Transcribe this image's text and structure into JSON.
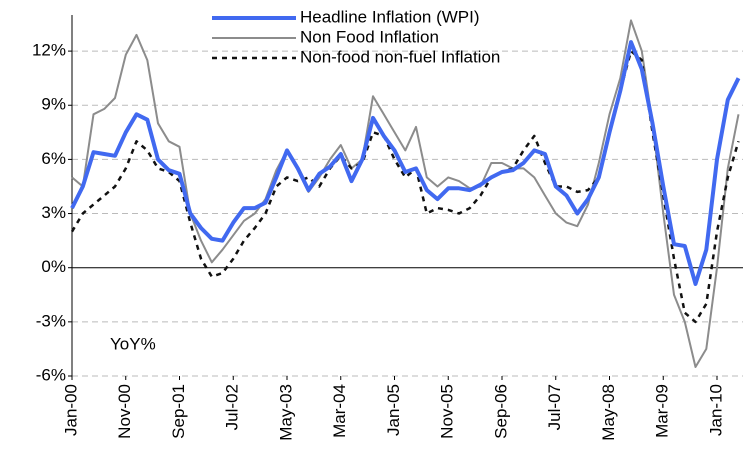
{
  "chart_data": {
    "type": "line",
    "annotation": "YoY%",
    "categories": [
      "Jan-00",
      null,
      null,
      null,
      null,
      "Nov-00",
      null,
      null,
      null,
      null,
      "Sep-01",
      null,
      null,
      null,
      null,
      "Jul-02",
      null,
      null,
      null,
      null,
      "May-03",
      null,
      null,
      null,
      null,
      "Mar-04",
      null,
      null,
      null,
      null,
      "Jan-05",
      null,
      null,
      null,
      null,
      "Nov-05",
      null,
      null,
      null,
      null,
      "Sep-06",
      null,
      null,
      null,
      null,
      "Jul-07",
      null,
      null,
      null,
      null,
      "May-08",
      null,
      null,
      null,
      null,
      "Mar-09",
      null,
      null,
      null,
      null,
      "Jan-10",
      null,
      null
    ],
    "series": [
      {
        "name": "Headline Inflation (WPI)",
        "color": "#4169f0",
        "style": "solid",
        "width": 4,
        "values": [
          3.3,
          4.5,
          6.4,
          6.3,
          6.2,
          7.5,
          8.5,
          8.2,
          6,
          5.4,
          5.2,
          3,
          2.2,
          1.6,
          1.5,
          2.5,
          3.3,
          3.3,
          3.6,
          5,
          6.5,
          5.5,
          4.3,
          5.2,
          5.6,
          6.3,
          4.8,
          6,
          8.3,
          7.3,
          6.5,
          5.3,
          5.5,
          4.3,
          3.8,
          4.4,
          4.4,
          4.3,
          4.6,
          5,
          5.3,
          5.4,
          5.8,
          6.5,
          6.3,
          4.5,
          4,
          3,
          3.8,
          5,
          7.5,
          9.8,
          12.5,
          11,
          8,
          4.5,
          1.3,
          1.2,
          -0.9,
          1,
          6,
          9.3,
          10.5
        ]
      },
      {
        "name": "Non Food Inflation",
        "color": "#8c8c8c",
        "style": "solid",
        "width": 2,
        "values": [
          5,
          4.5,
          8.5,
          8.8,
          9.4,
          11.8,
          12.9,
          11.5,
          8,
          7,
          6.7,
          3,
          1.5,
          0.3,
          1,
          1.8,
          2.6,
          3,
          3.8,
          5.4,
          6.5,
          5.4,
          4.2,
          5,
          6,
          6.8,
          5.5,
          6,
          9.5,
          8.5,
          7.5,
          6.5,
          7.8,
          5,
          4.5,
          5,
          4.8,
          4.4,
          4.5,
          5.8,
          5.8,
          5.5,
          5.5,
          5,
          4,
          3,
          2.5,
          2.3,
          3.5,
          5.8,
          8.5,
          10.5,
          13.7,
          12,
          8,
          3,
          -1.5,
          -3,
          -5.5,
          -4.5,
          0,
          5.5,
          8.5
        ]
      },
      {
        "name": "Non-food non-fuel Inflation",
        "color": "#111111",
        "style": "dotted",
        "width": 2.5,
        "values": [
          2,
          3,
          3.5,
          4,
          4.5,
          5.5,
          7,
          6.5,
          5.5,
          5.3,
          4.8,
          2.5,
          0.5,
          -0.5,
          -0.3,
          0.5,
          1.5,
          2.2,
          3,
          4.5,
          5,
          4.8,
          5,
          4.5,
          5.5,
          6.2,
          5.5,
          5.8,
          7.5,
          7.3,
          6,
          5,
          5.5,
          3,
          3.3,
          3.2,
          3,
          3.3,
          4,
          5,
          5.3,
          5.5,
          6.5,
          7.3,
          5.8,
          4.5,
          4.5,
          4.2,
          4.3,
          5,
          7.5,
          9.8,
          12,
          11.5,
          7.5,
          4,
          0.5,
          -2.5,
          -3,
          -2,
          2,
          5,
          7
        ]
      }
    ],
    "ylim": [
      -6,
      14
    ],
    "yticks": [
      {
        "value": -6,
        "label": "-6%"
      },
      {
        "value": -3,
        "label": "-3%"
      },
      {
        "value": 0,
        "label": "0%"
      },
      {
        "value": 3,
        "label": "3%"
      },
      {
        "value": 6,
        "label": "6%"
      },
      {
        "value": 9,
        "label": "9%"
      },
      {
        "value": 12,
        "label": "12%"
      }
    ],
    "grid": true
  }
}
